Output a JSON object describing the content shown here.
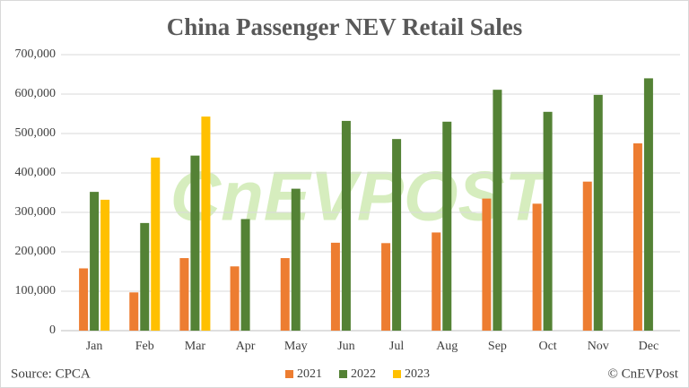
{
  "chart_data": {
    "type": "bar",
    "title": "China Passenger NEV Retail Sales",
    "categories": [
      "Jan",
      "Feb",
      "Mar",
      "Apr",
      "May",
      "Jun",
      "Jul",
      "Aug",
      "Sep",
      "Oct",
      "Nov",
      "Dec"
    ],
    "series": [
      {
        "name": "2021",
        "color": "#ed7d31",
        "values": [
          158000,
          97000,
          184000,
          163000,
          184000,
          223000,
          222000,
          249000,
          335000,
          322000,
          378000,
          475000
        ]
      },
      {
        "name": "2022",
        "color": "#548235",
        "values": [
          352000,
          273000,
          444000,
          283000,
          360000,
          532000,
          486000,
          530000,
          611000,
          555000,
          598000,
          640000
        ]
      },
      {
        "name": "2023",
        "color": "#ffc000",
        "values": [
          332000,
          439000,
          543000,
          null,
          null,
          null,
          null,
          null,
          null,
          null,
          null,
          null
        ]
      }
    ],
    "ylim": [
      0,
      700000
    ],
    "yticks": [
      0,
      {
        "value": 100000,
        "label": "100,000"
      },
      {
        "value": 200000,
        "label": "200,000"
      },
      {
        "value": 300000,
        "label": "300,000"
      },
      {
        "value": 400000,
        "label": "400,000"
      },
      {
        "value": 500000,
        "label": "500,000"
      },
      {
        "value": 600000,
        "label": "600,000"
      },
      {
        "value": 700000,
        "label": "700,000"
      }
    ],
    "grid": true,
    "legend": "bottom",
    "source": "Source: CPCA",
    "credit": "© CnEVPost",
    "watermark": "CnEVPOST"
  }
}
